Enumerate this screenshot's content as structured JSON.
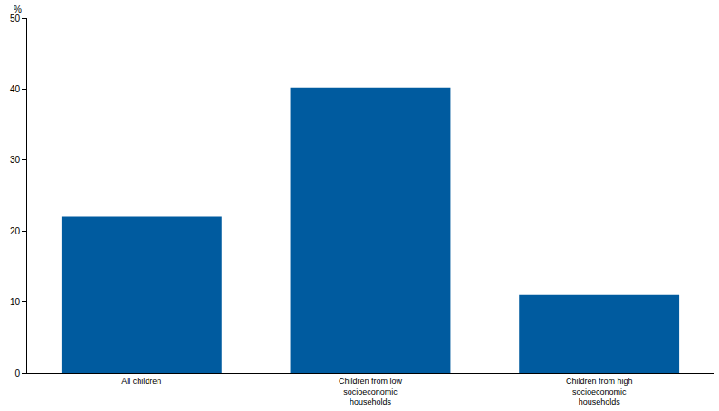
{
  "chart_data": {
    "type": "bar",
    "ylabel": "%",
    "categories": [
      "All children",
      "Children from low socioeconomic households",
      "Children from high socioeconomic households"
    ],
    "values": [
      22,
      40.2,
      11
    ],
    "color": "#005b9f",
    "ylim": [
      0,
      50
    ],
    "yticks": [
      0,
      10,
      20,
      30,
      40,
      50
    ],
    "grid": true
  }
}
